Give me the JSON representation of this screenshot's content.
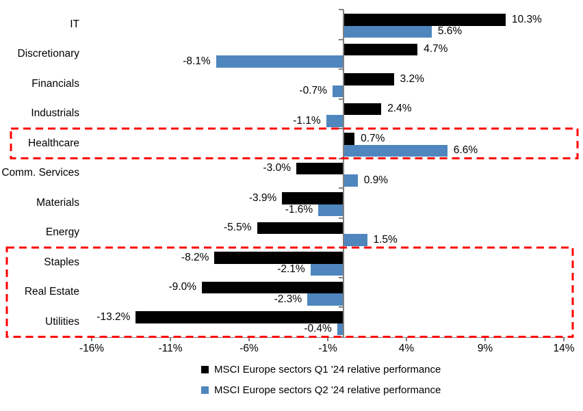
{
  "chart_data": {
    "type": "bar",
    "orientation": "horizontal",
    "title": "",
    "categories": [
      "IT",
      "Discretionary",
      "Financials",
      "Industrials",
      "Healthcare",
      "Comm. Services",
      "Materials",
      "Energy",
      "Staples",
      "Real Estate",
      "Utilities"
    ],
    "series": [
      {
        "name": "MSCI Europe sectors Q1 '24 relative performance",
        "color": "#000000",
        "values": [
          10.3,
          4.7,
          3.2,
          2.4,
          0.7,
          -3.0,
          -3.9,
          -5.5,
          -8.2,
          -9.0,
          -13.2
        ],
        "labels": [
          "10.3%",
          "4.7%",
          "3.2%",
          "2.4%",
          "0.7%",
          "-3.0%",
          "-3.9%",
          "-5.5%",
          "-8.2%",
          "-9.0%",
          "-13.2%"
        ]
      },
      {
        "name": "MSCI Europe sectors Q2 '24 relative performance",
        "color": "#4F86BE",
        "values": [
          5.6,
          -8.1,
          -0.7,
          -1.1,
          6.6,
          0.9,
          -1.6,
          1.5,
          -2.1,
          -2.3,
          -0.4
        ],
        "labels": [
          "5.6%",
          "-8.1%",
          "-0.7%",
          "-1.1%",
          "6.6%",
          "0.9%",
          "-1.6%",
          "1.5%",
          "-2.1%",
          "-2.3%",
          "-0.4%"
        ]
      }
    ],
    "x_axis": {
      "tick_labels": [
        "-16%",
        "-11%",
        "-6%",
        "-1%",
        "4%",
        "9%",
        "14%"
      ],
      "tick_values": [
        -16,
        -11,
        -6,
        -1,
        4,
        9,
        14
      ],
      "min": -16,
      "max": 14,
      "grid": false,
      "axis_color": "#808080"
    },
    "legend_position": "bottom",
    "highlights": [
      {
        "label": "healthcare",
        "rows": [
          4
        ],
        "color": "#FF0000"
      },
      {
        "label": "staples-real-estate-utilities",
        "rows": [
          8,
          9,
          10
        ],
        "color": "#FF0000"
      }
    ]
  }
}
